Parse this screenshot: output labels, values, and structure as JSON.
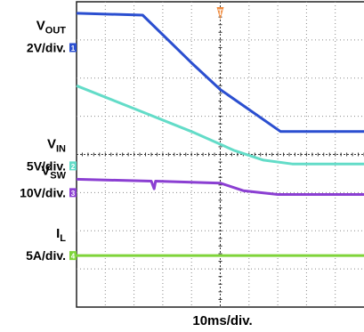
{
  "chart_data": {
    "type": "line",
    "title": "",
    "x_axis": {
      "label": "10ms/div.",
      "unit": "ms",
      "divisions": 10,
      "range": [
        0,
        100
      ]
    },
    "y_axis": {
      "divisions": 8,
      "range": [
        0,
        8
      ]
    },
    "grid": true,
    "trigger_marker": {
      "label": "T",
      "x": 50
    },
    "channels": [
      {
        "name": "VOUT",
        "sub": "OUT",
        "main": "V",
        "scale": "2V/div.",
        "marker": "1",
        "color": "#2b4fd0",
        "ground_div": 6.8,
        "points": [
          [
            0,
            7.7
          ],
          [
            23,
            7.65
          ],
          [
            40,
            6.4
          ],
          [
            50,
            5.7
          ],
          [
            71,
            4.6
          ],
          [
            100,
            4.6
          ]
        ]
      },
      {
        "name": "VIN",
        "sub": "IN",
        "main": "V",
        "scale": "5V/div.",
        "marker": "2",
        "color": "#63dcc8",
        "ground_div": 3.7,
        "points": [
          [
            0,
            5.8
          ],
          [
            20,
            5.2
          ],
          [
            40,
            4.6
          ],
          [
            55,
            4.1
          ],
          [
            65,
            3.85
          ],
          [
            75,
            3.75
          ],
          [
            100,
            3.75
          ]
        ]
      },
      {
        "name": "VSW",
        "sub": "SW",
        "main": "V",
        "scale": "10V/div.",
        "marker": "3",
        "color": "#8b3fd2",
        "ground_div": 3.0,
        "points": [
          [
            0,
            3.35
          ],
          [
            26,
            3.3
          ],
          [
            27,
            3.1
          ],
          [
            27.5,
            3.3
          ],
          [
            50,
            3.25
          ],
          [
            58,
            3.05
          ],
          [
            70,
            2.95
          ],
          [
            100,
            2.95
          ]
        ]
      },
      {
        "name": "IL",
        "sub": "L",
        "main": "I",
        "scale": "5A/div.",
        "marker": "4",
        "color": "#7fd43a",
        "ground_div": 1.35,
        "points": [
          [
            0,
            1.35
          ],
          [
            100,
            1.35
          ]
        ]
      }
    ]
  }
}
